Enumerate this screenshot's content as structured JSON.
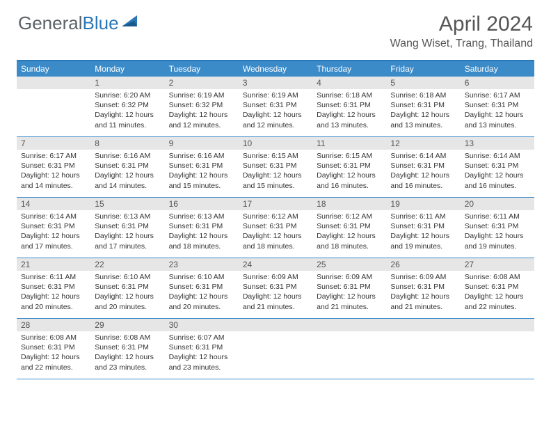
{
  "logo": {
    "part1": "General",
    "part2": "Blue"
  },
  "title": "April 2024",
  "location": "Wang Wiset, Trang, Thailand",
  "colors": {
    "header_bg": "#3b8bc9",
    "border": "#2a77b8",
    "daybar": "#e6e6e6",
    "text": "#333333",
    "muted": "#555555",
    "white": "#ffffff"
  },
  "dow": [
    "Sunday",
    "Monday",
    "Tuesday",
    "Wednesday",
    "Thursday",
    "Friday",
    "Saturday"
  ],
  "weeks": [
    [
      {
        "n": "",
        "sr": "",
        "ss": "",
        "dl": ""
      },
      {
        "n": "1",
        "sr": "Sunrise: 6:20 AM",
        "ss": "Sunset: 6:32 PM",
        "dl": "Daylight: 12 hours and 11 minutes."
      },
      {
        "n": "2",
        "sr": "Sunrise: 6:19 AM",
        "ss": "Sunset: 6:32 PM",
        "dl": "Daylight: 12 hours and 12 minutes."
      },
      {
        "n": "3",
        "sr": "Sunrise: 6:19 AM",
        "ss": "Sunset: 6:31 PM",
        "dl": "Daylight: 12 hours and 12 minutes."
      },
      {
        "n": "4",
        "sr": "Sunrise: 6:18 AM",
        "ss": "Sunset: 6:31 PM",
        "dl": "Daylight: 12 hours and 13 minutes."
      },
      {
        "n": "5",
        "sr": "Sunrise: 6:18 AM",
        "ss": "Sunset: 6:31 PM",
        "dl": "Daylight: 12 hours and 13 minutes."
      },
      {
        "n": "6",
        "sr": "Sunrise: 6:17 AM",
        "ss": "Sunset: 6:31 PM",
        "dl": "Daylight: 12 hours and 13 minutes."
      }
    ],
    [
      {
        "n": "7",
        "sr": "Sunrise: 6:17 AM",
        "ss": "Sunset: 6:31 PM",
        "dl": "Daylight: 12 hours and 14 minutes."
      },
      {
        "n": "8",
        "sr": "Sunrise: 6:16 AM",
        "ss": "Sunset: 6:31 PM",
        "dl": "Daylight: 12 hours and 14 minutes."
      },
      {
        "n": "9",
        "sr": "Sunrise: 6:16 AM",
        "ss": "Sunset: 6:31 PM",
        "dl": "Daylight: 12 hours and 15 minutes."
      },
      {
        "n": "10",
        "sr": "Sunrise: 6:15 AM",
        "ss": "Sunset: 6:31 PM",
        "dl": "Daylight: 12 hours and 15 minutes."
      },
      {
        "n": "11",
        "sr": "Sunrise: 6:15 AM",
        "ss": "Sunset: 6:31 PM",
        "dl": "Daylight: 12 hours and 16 minutes."
      },
      {
        "n": "12",
        "sr": "Sunrise: 6:14 AM",
        "ss": "Sunset: 6:31 PM",
        "dl": "Daylight: 12 hours and 16 minutes."
      },
      {
        "n": "13",
        "sr": "Sunrise: 6:14 AM",
        "ss": "Sunset: 6:31 PM",
        "dl": "Daylight: 12 hours and 16 minutes."
      }
    ],
    [
      {
        "n": "14",
        "sr": "Sunrise: 6:14 AM",
        "ss": "Sunset: 6:31 PM",
        "dl": "Daylight: 12 hours and 17 minutes."
      },
      {
        "n": "15",
        "sr": "Sunrise: 6:13 AM",
        "ss": "Sunset: 6:31 PM",
        "dl": "Daylight: 12 hours and 17 minutes."
      },
      {
        "n": "16",
        "sr": "Sunrise: 6:13 AM",
        "ss": "Sunset: 6:31 PM",
        "dl": "Daylight: 12 hours and 18 minutes."
      },
      {
        "n": "17",
        "sr": "Sunrise: 6:12 AM",
        "ss": "Sunset: 6:31 PM",
        "dl": "Daylight: 12 hours and 18 minutes."
      },
      {
        "n": "18",
        "sr": "Sunrise: 6:12 AM",
        "ss": "Sunset: 6:31 PM",
        "dl": "Daylight: 12 hours and 18 minutes."
      },
      {
        "n": "19",
        "sr": "Sunrise: 6:11 AM",
        "ss": "Sunset: 6:31 PM",
        "dl": "Daylight: 12 hours and 19 minutes."
      },
      {
        "n": "20",
        "sr": "Sunrise: 6:11 AM",
        "ss": "Sunset: 6:31 PM",
        "dl": "Daylight: 12 hours and 19 minutes."
      }
    ],
    [
      {
        "n": "21",
        "sr": "Sunrise: 6:11 AM",
        "ss": "Sunset: 6:31 PM",
        "dl": "Daylight: 12 hours and 20 minutes."
      },
      {
        "n": "22",
        "sr": "Sunrise: 6:10 AM",
        "ss": "Sunset: 6:31 PM",
        "dl": "Daylight: 12 hours and 20 minutes."
      },
      {
        "n": "23",
        "sr": "Sunrise: 6:10 AM",
        "ss": "Sunset: 6:31 PM",
        "dl": "Daylight: 12 hours and 20 minutes."
      },
      {
        "n": "24",
        "sr": "Sunrise: 6:09 AM",
        "ss": "Sunset: 6:31 PM",
        "dl": "Daylight: 12 hours and 21 minutes."
      },
      {
        "n": "25",
        "sr": "Sunrise: 6:09 AM",
        "ss": "Sunset: 6:31 PM",
        "dl": "Daylight: 12 hours and 21 minutes."
      },
      {
        "n": "26",
        "sr": "Sunrise: 6:09 AM",
        "ss": "Sunset: 6:31 PM",
        "dl": "Daylight: 12 hours and 21 minutes."
      },
      {
        "n": "27",
        "sr": "Sunrise: 6:08 AM",
        "ss": "Sunset: 6:31 PM",
        "dl": "Daylight: 12 hours and 22 minutes."
      }
    ],
    [
      {
        "n": "28",
        "sr": "Sunrise: 6:08 AM",
        "ss": "Sunset: 6:31 PM",
        "dl": "Daylight: 12 hours and 22 minutes."
      },
      {
        "n": "29",
        "sr": "Sunrise: 6:08 AM",
        "ss": "Sunset: 6:31 PM",
        "dl": "Daylight: 12 hours and 23 minutes."
      },
      {
        "n": "30",
        "sr": "Sunrise: 6:07 AM",
        "ss": "Sunset: 6:31 PM",
        "dl": "Daylight: 12 hours and 23 minutes."
      },
      {
        "n": "",
        "sr": "",
        "ss": "",
        "dl": ""
      },
      {
        "n": "",
        "sr": "",
        "ss": "",
        "dl": ""
      },
      {
        "n": "",
        "sr": "",
        "ss": "",
        "dl": ""
      },
      {
        "n": "",
        "sr": "",
        "ss": "",
        "dl": ""
      }
    ]
  ]
}
